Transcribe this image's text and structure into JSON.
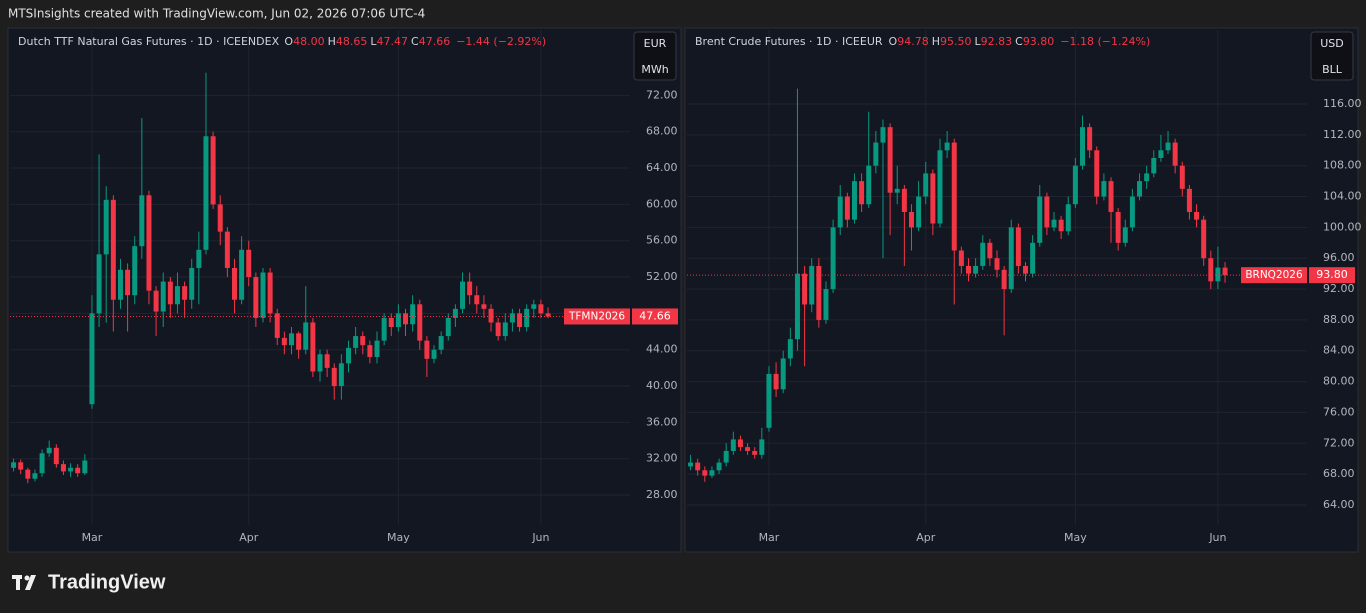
{
  "header": {
    "banner": "MTSInsights created with TradingView.com, Jun 02, 2026 07:06 UTC-4"
  },
  "footer": {
    "brand": "TradingView"
  },
  "chart_data": [
    {
      "type": "candlestick",
      "title": "Dutch TTF Natural Gas Futures · 1D · ICEENDEX",
      "ohlc": [
        {
          "key": "O",
          "value": "48.00"
        },
        {
          "key": "H",
          "value": "48.65"
        },
        {
          "key": "L",
          "value": "47.47"
        },
        {
          "key": "C",
          "value": "47.66"
        }
      ],
      "change": "−1.44 (−2.92%)",
      "currency": "EUR",
      "unit": "MWh",
      "symbol": "TFMN2026",
      "last_price": 47.66,
      "up_color": "#089981",
      "down_color": "#f23645",
      "grid": true,
      "categories": [
        null,
        null,
        null,
        null,
        null,
        null,
        null,
        null,
        null,
        null,
        null,
        "Mar",
        null,
        null,
        null,
        null,
        null,
        null,
        null,
        null,
        null,
        null,
        null,
        null,
        null,
        null,
        null,
        null,
        null,
        null,
        null,
        null,
        null,
        "Apr",
        null,
        null,
        null,
        null,
        null,
        null,
        null,
        null,
        null,
        null,
        null,
        null,
        null,
        null,
        null,
        null,
        null,
        null,
        null,
        null,
        "May",
        null,
        null,
        null,
        null,
        null,
        null,
        null,
        null,
        null,
        null,
        null,
        null,
        null,
        null,
        null,
        null,
        null,
        null,
        null,
        "Jun",
        null
      ],
      "open": [
        31.0,
        31.6,
        30.8,
        29.8,
        30.4,
        32.6,
        33.2,
        31.4,
        30.6,
        31.0,
        30.4,
        38.0,
        48.0,
        54.5,
        60.5,
        49.5,
        52.8,
        50.0,
        55.4,
        61.0,
        50.5,
        48.2,
        51.5,
        49.0,
        51.0,
        49.5,
        53.0,
        55.0,
        67.5,
        60.0,
        57.0,
        53.0,
        49.5,
        55.0,
        52.0,
        47.5,
        52.5,
        48.0,
        45.3,
        44.5,
        45.8,
        44.0,
        47.0,
        41.6,
        43.5,
        42.0,
        40.0,
        42.5,
        44.2,
        45.5,
        44.5,
        43.2,
        45.0,
        47.5,
        46.5,
        48.0,
        46.8,
        49.0,
        45.0,
        43.0,
        44.0,
        45.5,
        47.5,
        48.5,
        51.5,
        50.0,
        49.0,
        48.5,
        47.0,
        45.5,
        47.0,
        48.0,
        46.5,
        48.5,
        49.0,
        48.0
      ],
      "high": [
        32.0,
        31.9,
        31.0,
        30.8,
        33.0,
        34.0,
        33.6,
        31.8,
        31.5,
        31.4,
        32.5,
        50.0,
        65.5,
        62.0,
        61.0,
        54.0,
        53.5,
        56.5,
        69.5,
        61.5,
        51.0,
        52.5,
        52.0,
        52.5,
        51.5,
        54.0,
        57.0,
        74.5,
        68.0,
        61.0,
        57.5,
        54.0,
        56.5,
        56.0,
        52.5,
        53.0,
        53.0,
        48.5,
        46.0,
        46.5,
        46.0,
        51.0,
        47.5,
        44.0,
        44.0,
        42.5,
        43.5,
        45.0,
        46.5,
        46.0,
        45.0,
        46.0,
        48.0,
        48.0,
        49.0,
        48.5,
        50.0,
        49.5,
        45.5,
        44.5,
        46.0,
        48.0,
        49.0,
        52.5,
        52.5,
        51.0,
        50.0,
        49.0,
        47.5,
        48.0,
        48.5,
        48.5,
        49.0,
        49.5,
        49.5,
        48.65
      ],
      "low": [
        30.6,
        30.3,
        29.3,
        29.5,
        30.0,
        32.2,
        31.0,
        30.2,
        30.0,
        30.0,
        30.2,
        37.5,
        46.5,
        47.0,
        46.0,
        48.5,
        46.0,
        49.0,
        54.0,
        49.0,
        45.5,
        46.5,
        47.5,
        48.0,
        47.5,
        48.5,
        49.0,
        54.5,
        59.5,
        55.5,
        52.0,
        48.0,
        49.0,
        51.0,
        46.5,
        47.0,
        47.0,
        44.5,
        43.5,
        43.5,
        43.0,
        43.5,
        41.0,
        40.5,
        41.0,
        38.5,
        38.5,
        41.5,
        43.5,
        43.5,
        42.5,
        42.5,
        44.5,
        45.5,
        46.0,
        45.5,
        46.0,
        44.0,
        41.0,
        42.5,
        43.5,
        45.0,
        46.5,
        48.0,
        49.0,
        48.0,
        47.5,
        46.0,
        45.0,
        45.0,
        46.0,
        46.0,
        46.0,
        47.5,
        47.5,
        47.47
      ],
      "close": [
        31.6,
        30.8,
        29.8,
        30.4,
        32.6,
        33.2,
        31.4,
        30.6,
        31.0,
        30.4,
        31.8,
        48.0,
        54.5,
        60.5,
        49.5,
        52.8,
        50.0,
        55.4,
        61.0,
        50.5,
        48.2,
        51.5,
        49.0,
        51.0,
        49.5,
        53.0,
        55.0,
        67.5,
        60.0,
        57.0,
        53.0,
        49.5,
        55.0,
        52.0,
        47.5,
        52.5,
        48.0,
        45.3,
        44.5,
        45.8,
        44.0,
        47.0,
        41.6,
        43.5,
        42.0,
        40.0,
        42.5,
        44.2,
        45.5,
        44.5,
        43.2,
        45.0,
        47.5,
        46.5,
        48.0,
        46.8,
        49.0,
        45.0,
        43.0,
        44.0,
        45.5,
        47.5,
        48.5,
        51.5,
        50.0,
        49.0,
        48.5,
        47.0,
        45.5,
        47.0,
        48.0,
        46.5,
        48.5,
        49.0,
        48.0,
        47.66
      ],
      "ylim": [
        24.7,
        79.2
      ],
      "yticks": [
        {
          "value": 28,
          "label": "28.00"
        },
        {
          "value": 32,
          "label": "32.00"
        },
        {
          "value": 36,
          "label": "36.00"
        },
        {
          "value": 40,
          "label": "40.00"
        },
        {
          "value": 44,
          "label": "44.00"
        },
        {
          "value": 48,
          "label": "48.00"
        },
        {
          "value": 52,
          "label": "52.00"
        },
        {
          "value": 56,
          "label": "56.00"
        },
        {
          "value": 60,
          "label": "60.00"
        },
        {
          "value": 64,
          "label": "64.00"
        },
        {
          "value": 68,
          "label": "68.00"
        },
        {
          "value": 72,
          "label": "72.00"
        }
      ]
    },
    {
      "type": "candlestick",
      "title": "Brent Crude Futures · 1D · ICEEUR",
      "ohlc": [
        {
          "key": "O",
          "value": "94.78"
        },
        {
          "key": "H",
          "value": "95.50"
        },
        {
          "key": "L",
          "value": "92.83"
        },
        {
          "key": "C",
          "value": "93.80"
        }
      ],
      "change": "−1.18 (−1.24%)",
      "currency": "USD",
      "unit": "BLL",
      "symbol": "BRNQ2026",
      "last_price": {
        "value": 93.8,
        "label": "93.80"
      },
      "up_color": "#089981",
      "down_color": "#f23645",
      "grid": true,
      "categories": [
        null,
        null,
        null,
        null,
        null,
        null,
        null,
        null,
        null,
        null,
        null,
        "Mar",
        null,
        null,
        null,
        null,
        null,
        null,
        null,
        null,
        null,
        null,
        null,
        null,
        null,
        null,
        null,
        null,
        null,
        null,
        null,
        null,
        null,
        "Apr",
        null,
        null,
        null,
        null,
        null,
        null,
        null,
        null,
        null,
        null,
        null,
        null,
        null,
        null,
        null,
        null,
        null,
        null,
        null,
        null,
        "May",
        null,
        null,
        null,
        null,
        null,
        null,
        null,
        null,
        null,
        null,
        null,
        null,
        null,
        null,
        null,
        null,
        null,
        null,
        null,
        "Jun",
        null
      ],
      "open": [
        69.0,
        69.5,
        68.5,
        67.8,
        68.5,
        69.5,
        71.0,
        72.5,
        71.5,
        71.0,
        70.5,
        74.0,
        81.0,
        79.0,
        83.0,
        85.5,
        94.0,
        90.0,
        95.0,
        88.0,
        92.0,
        100.0,
        104.0,
        101.0,
        106.0,
        103.0,
        108.0,
        111.0,
        113.0,
        104.5,
        105.0,
        102.0,
        100.0,
        104.0,
        107.0,
        100.5,
        110.0,
        111.0,
        97.0,
        95.0,
        94.0,
        95.0,
        98.0,
        96.0,
        94.5,
        92.0,
        100.0,
        95.0,
        94.0,
        98.0,
        104.0,
        100.0,
        101.0,
        99.5,
        103.0,
        108.0,
        113.0,
        110.0,
        104.0,
        106.0,
        102.0,
        98.0,
        100.0,
        104.0,
        106.0,
        107.0,
        109.0,
        110.0,
        111.0,
        108.0,
        105.0,
        102.0,
        101.0,
        96.0,
        93.0,
        94.78
      ],
      "high": [
        70.5,
        70.0,
        69.0,
        69.0,
        70.0,
        72.0,
        73.5,
        73.0,
        72.0,
        71.5,
        74.0,
        82.0,
        82.5,
        84.0,
        87.0,
        118.0,
        95.0,
        96.0,
        96.0,
        93.0,
        101.0,
        105.5,
        104.5,
        107.0,
        107.0,
        115.0,
        112.5,
        114.0,
        113.5,
        108.0,
        105.5,
        103.0,
        106.0,
        108.5,
        107.5,
        111.5,
        112.5,
        111.5,
        97.5,
        96.0,
        96.0,
        99.0,
        98.5,
        97.0,
        95.0,
        101.0,
        100.5,
        95.5,
        99.0,
        105.5,
        104.5,
        102.0,
        101.5,
        104.0,
        109.0,
        114.5,
        113.5,
        110.5,
        107.0,
        106.5,
        102.5,
        101.0,
        105.0,
        107.0,
        108.0,
        110.0,
        112.0,
        112.5,
        111.5,
        108.5,
        105.5,
        103.0,
        101.5,
        97.0,
        97.5,
        95.5
      ],
      "low": [
        68.5,
        67.8,
        67.0,
        67.5,
        68.0,
        69.0,
        70.5,
        71.0,
        70.5,
        70.0,
        70.0,
        73.5,
        78.0,
        78.5,
        82.0,
        84.0,
        82.0,
        89.0,
        87.0,
        87.5,
        91.5,
        99.0,
        100.0,
        100.5,
        102.0,
        102.5,
        107.0,
        96.0,
        99.0,
        103.0,
        95.0,
        97.0,
        99.5,
        103.0,
        99.0,
        100.0,
        109.0,
        90.0,
        94.0,
        93.0,
        93.5,
        94.5,
        95.0,
        93.5,
        86.0,
        91.5,
        94.0,
        93.0,
        93.5,
        97.5,
        99.0,
        99.5,
        98.5,
        99.0,
        102.5,
        107.5,
        109.0,
        103.0,
        103.5,
        98.0,
        97.0,
        97.5,
        99.5,
        103.5,
        105.0,
        106.5,
        108.5,
        109.5,
        107.0,
        104.0,
        101.0,
        100.0,
        95.0,
        92.0,
        92.0,
        92.83
      ],
      "close": [
        69.5,
        68.5,
        67.8,
        68.5,
        69.5,
        71.0,
        72.5,
        71.5,
        71.0,
        70.5,
        72.5,
        81.0,
        79.0,
        83.0,
        85.5,
        94.0,
        90.0,
        95.0,
        88.0,
        92.0,
        100.0,
        104.0,
        101.0,
        106.0,
        103.0,
        108.0,
        111.0,
        113.0,
        104.5,
        105.0,
        102.0,
        100.0,
        104.0,
        107.0,
        100.5,
        110.0,
        111.0,
        97.0,
        95.0,
        94.0,
        95.0,
        98.0,
        96.0,
        94.5,
        92.0,
        100.0,
        95.0,
        94.0,
        98.0,
        104.0,
        100.0,
        101.0,
        99.5,
        103.0,
        108.0,
        113.0,
        110.0,
        104.0,
        106.0,
        102.0,
        98.0,
        100.0,
        104.0,
        106.0,
        107.0,
        109.0,
        110.0,
        111.0,
        108.0,
        105.0,
        102.0,
        101.0,
        96.0,
        93.0,
        94.78,
        93.8
      ],
      "ylim": [
        61.4,
        125.6
      ],
      "yticks": [
        {
          "value": 64,
          "label": "64.00"
        },
        {
          "value": 68,
          "label": "68.00"
        },
        {
          "value": 72,
          "label": "72.00"
        },
        {
          "value": 76,
          "label": "76.00"
        },
        {
          "value": 80,
          "label": "80.00"
        },
        {
          "value": 84,
          "label": "84.00"
        },
        {
          "value": 88,
          "label": "88.00"
        },
        {
          "value": 92,
          "label": "92.00"
        },
        {
          "value": 96,
          "label": "96.00"
        },
        {
          "value": 100,
          "label": "100.00"
        },
        {
          "value": 104,
          "label": "104.00"
        },
        {
          "value": 108,
          "label": "108.00"
        },
        {
          "value": 112,
          "label": "112.00"
        },
        {
          "value": 116,
          "label": "116.00"
        }
      ]
    }
  ]
}
